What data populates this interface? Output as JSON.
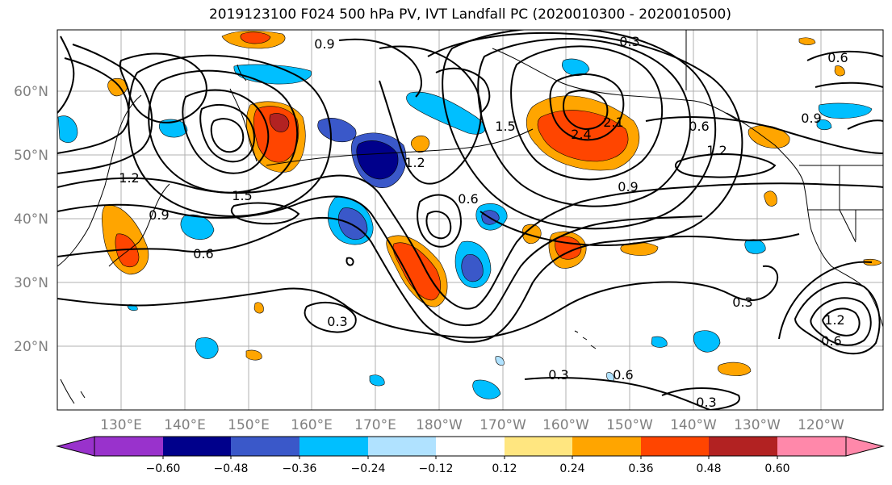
{
  "title": "2019123100 F024 500 hPa PV, IVT Landfall PC (2020010300 - 2020010500)",
  "map": {
    "lat_labels": [
      "60°N",
      "50°N",
      "40°N",
      "30°N",
      "20°N"
    ],
    "lon_labels": [
      "130°E",
      "140°E",
      "150°E",
      "160°E",
      "170°E",
      "180°W",
      "170°W",
      "160°W",
      "150°W",
      "140°W",
      "130°W",
      "120°W"
    ],
    "contour_labels": [
      "0.9",
      "0.3",
      "0.6",
      "1.2",
      "1.5",
      "2.1",
      "2.4",
      "0.9",
      "0.6",
      "0.3",
      "0.3",
      "0.6",
      "1.2",
      "1.5",
      "0.9",
      "0.6",
      "0.3",
      "0.6",
      "0.3",
      "1.2",
      "0.9",
      "0.6",
      "1.2"
    ]
  },
  "colorbar": {
    "ticks": [
      "−0.60",
      "−0.48",
      "−0.36",
      "−0.24",
      "−0.12",
      "0.12",
      "0.24",
      "0.36",
      "0.48",
      "0.60"
    ],
    "colors": [
      "#9932cc",
      "#00008b",
      "#3a58c9",
      "#00bfff",
      "#b0e2ff",
      "#ffffff",
      "#ffe680",
      "#ffa500",
      "#ff4500",
      "#b22222",
      "#ff88aa"
    ]
  }
}
